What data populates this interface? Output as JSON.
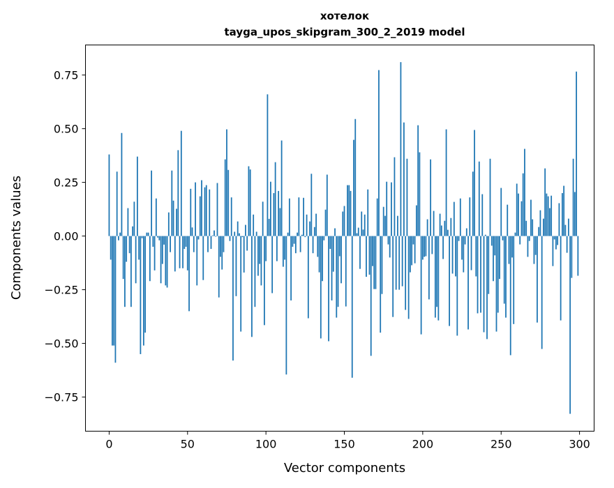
{
  "chart_data": {
    "type": "bar",
    "title": "хотелок",
    "subtitle": "tayga_upos_skipgram_300_2_2019 model",
    "xlabel": "Vector components",
    "ylabel": "Components values",
    "xlim": [
      -15.1,
      309.3
    ],
    "ylim": [
      -0.909,
      0.89
    ],
    "xticks": [
      0,
      50,
      100,
      150,
      200,
      250,
      300
    ],
    "xtick_labels": [
      "0",
      "50",
      "100",
      "150",
      "200",
      "250",
      "300"
    ],
    "yticks": [
      -0.75,
      -0.5,
      -0.25,
      0,
      0.25,
      0.5,
      0.75
    ],
    "ytick_labels": [
      "−0.75",
      "−0.50",
      "−0.25",
      "0.00",
      "0.25",
      "0.50",
      "0.75"
    ],
    "grid": false,
    "bar_color": "#1f77b4",
    "values": [
      0.38,
      -0.11,
      -0.51,
      -0.51,
      -0.59,
      0.3,
      -0.02,
      0.016,
      0.48,
      -0.2,
      -0.33,
      -0.12,
      0.13,
      -0.08,
      -0.33,
      0.045,
      0.16,
      -0.22,
      0.37,
      -0.11,
      -0.55,
      -0.01,
      -0.51,
      -0.45,
      0.016,
      0.016,
      -0.21,
      0.305,
      -0.05,
      -0.16,
      0.175,
      -0.007,
      -0.02,
      -0.22,
      -0.13,
      -0.04,
      -0.23,
      -0.24,
      0.11,
      -0.075,
      0.305,
      0.165,
      -0.165,
      0.127,
      0.4,
      -0.15,
      0.49,
      -0.15,
      -0.06,
      -0.05,
      -0.16,
      -0.35,
      0.22,
      0.04,
      -0.075,
      0.25,
      -0.23,
      -0.016,
      0.185,
      0.26,
      -0.205,
      0.227,
      0.237,
      -0.075,
      0.217,
      -0.06,
      0.003,
      0.026,
      -0.003,
      0.247,
      -0.286,
      -0.097,
      -0.156,
      -0.075,
      0.357,
      0.497,
      0.308,
      -0.023,
      0.18,
      -0.58,
      0.02,
      -0.28,
      0.068,
      0.013,
      -0.445,
      -0.005,
      -0.17,
      0.052,
      -0.068,
      0.325,
      0.31,
      -0.47,
      0.1,
      -0.33,
      0.02,
      -0.185,
      -0.13,
      -0.23,
      0.16,
      -0.415,
      -0.117,
      0.66,
      0.08,
      0.253,
      -0.266,
      0.2,
      0.344,
      -0.117,
      0.21,
      0.13,
      0.445,
      -0.143,
      -0.11,
      -0.645,
      0.016,
      0.175,
      -0.3,
      -0.05,
      -0.036,
      -0.08,
      0.016,
      0.18,
      -0.075,
      0.006,
      0.178,
      -0.005,
      0.1,
      -0.383,
      0.068,
      0.29,
      -0.08,
      0.042,
      0.104,
      -0.097,
      -0.169,
      -0.477,
      -0.21,
      -0.02,
      0.123,
      0.286,
      -0.49,
      -0.06,
      -0.3,
      -0.166,
      0.036,
      -0.38,
      -0.33,
      -0.094,
      -0.22,
      0.114,
      0.14,
      -0.328,
      0.237,
      0.237,
      0.21,
      -0.66,
      0.448,
      0.545,
      0.013,
      0.039,
      -0.153,
      0.114,
      0.03,
      0.1,
      -0.19,
      0.217,
      -0.18,
      -0.558,
      -0.14,
      -0.247,
      -0.247,
      0.175,
      0.773,
      -0.45,
      -0.27,
      0.136,
      0.094,
      0.253,
      -0.039,
      -0.1,
      0.25,
      -0.377,
      0.367,
      -0.25,
      0.094,
      -0.25,
      0.81,
      -0.234,
      0.529,
      -0.344,
      0.36,
      -0.386,
      -0.169,
      -0.136,
      -0.039,
      -0.127,
      0.143,
      0.516,
      0.39,
      -0.458,
      -0.11,
      -0.097,
      -0.094,
      0.078,
      -0.295,
      0.357,
      -0.084,
      0.117,
      -0.38,
      -0.33,
      -0.393,
      0.104,
      0.049,
      -0.107,
      0.071,
      0.497,
      0.029,
      -0.419,
      0.084,
      -0.175,
      0.159,
      -0.188,
      -0.464,
      -0.023,
      0.175,
      -0.11,
      -0.169,
      -0.039,
      0.036,
      -0.435,
      0.18,
      -0.159,
      0.3,
      0.494,
      -0.188,
      -0.36,
      0.347,
      -0.357,
      0.195,
      -0.448,
      0.006,
      -0.48,
      -0.27,
      0.36,
      -0.045,
      -0.21,
      -0.09,
      -0.445,
      -0.357,
      -0.2,
      0.224,
      -0.02,
      -0.315,
      -0.38,
      0.146,
      -0.13,
      -0.555,
      -0.1,
      -0.41,
      0.016,
      0.244,
      0.198,
      -0.039,
      0.162,
      0.292,
      0.406,
      0.071,
      -0.097,
      -0.023,
      0.169,
      0.078,
      -0.13,
      -0.088,
      -0.403,
      0.042,
      0.12,
      -0.526,
      0.081,
      0.315,
      0.198,
      0.185,
      0.13,
      0.188,
      -0.14,
      -0.016,
      -0.062,
      -0.042,
      0.153,
      -0.393,
      0.2,
      0.234,
      0.052,
      -0.078,
      0.081,
      -0.828,
      -0.195,
      0.36,
      0.205,
      0.766,
      -0.185
    ]
  }
}
